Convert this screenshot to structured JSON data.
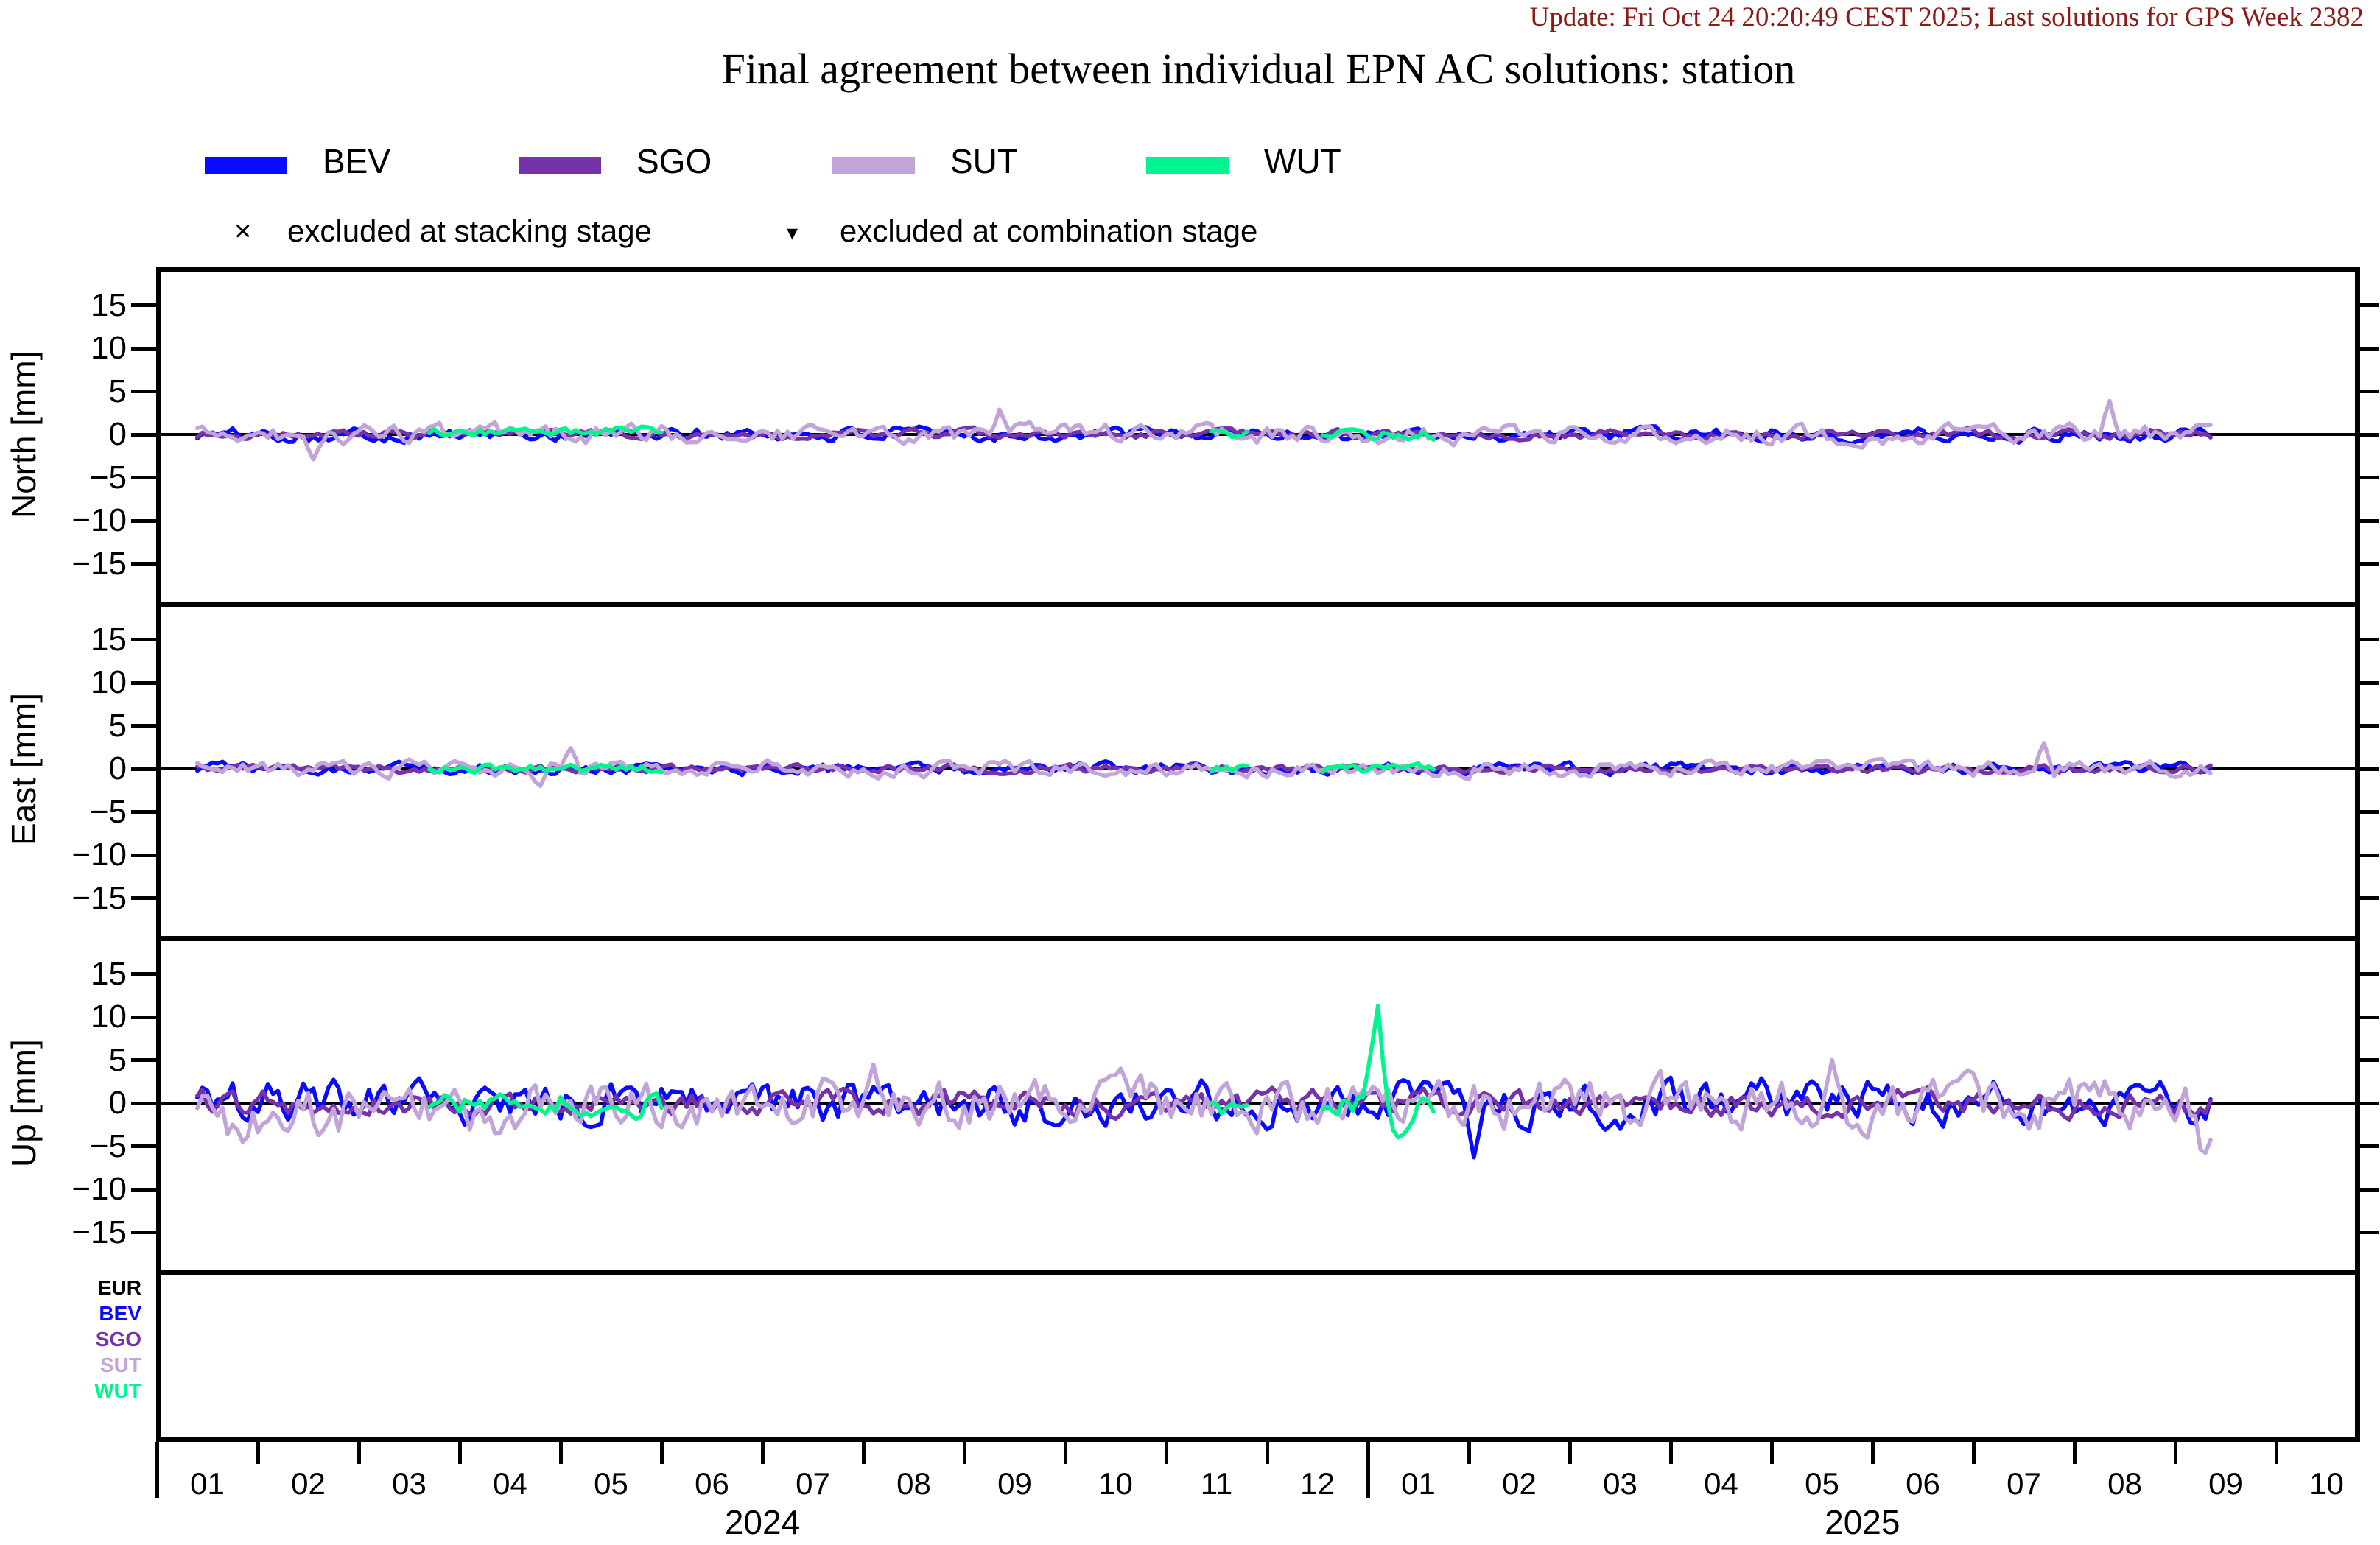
{
  "header": {
    "update_text": "Update: Fri Oct 24 20:20:49 CEST 2025; Last solutions for GPS Week 2382",
    "update_color": "#8b1a1a",
    "title": "Final agreement between individual EPN AC solutions: station"
  },
  "legend": {
    "entries": [
      {
        "label": "BEV",
        "color": "#0a0aff"
      },
      {
        "label": "SGO",
        "color": "#7632a8"
      },
      {
        "label": "SUT",
        "color": "#c2a5d8"
      },
      {
        "label": "WUT",
        "color": "#00f591"
      }
    ],
    "exclusions": [
      {
        "symbol": "×",
        "label": "excluded at stacking stage"
      },
      {
        "symbol": "▾",
        "label": "excluded at combination stage"
      }
    ]
  },
  "strip_labels": [
    {
      "label": "EUR",
      "color": "#000000"
    },
    {
      "label": "BEV",
      "color": "#0a0aff"
    },
    {
      "label": "SGO",
      "color": "#7632a8"
    },
    {
      "label": "SUT",
      "color": "#c2a5d8"
    },
    {
      "label": "WUT",
      "color": "#00f591"
    }
  ],
  "chart_data": {
    "type": "line",
    "title": "Final agreement between individual EPN AC solutions: station",
    "panels": [
      {
        "id": "North",
        "ylabel": "North [mm]"
      },
      {
        "id": "East",
        "ylabel": "East [mm]"
      },
      {
        "id": "Up",
        "ylabel": "Up [mm]"
      }
    ],
    "y_axis": {
      "ticks": [
        15,
        10,
        5,
        0,
        -5,
        -10,
        -15
      ],
      "lim": [
        -19.4,
        19.4
      ],
      "unit": "mm"
    },
    "x_axis": {
      "unit": "month",
      "axis_span_months": 21.83,
      "data_start_month": 0.4,
      "data_end_month": 20.35,
      "month_labels": [
        "01",
        "02",
        "03",
        "04",
        "05",
        "06",
        "07",
        "08",
        "09",
        "10",
        "11",
        "12",
        "01",
        "02",
        "03",
        "04",
        "05",
        "06",
        "07",
        "08",
        "09",
        "10"
      ],
      "year_tick_months": [
        0,
        12
      ],
      "year_labels": [
        {
          "label": "2024",
          "center_month": 6.0
        },
        {
          "label": "2025",
          "center_month": 16.9
        }
      ]
    },
    "noise": {
      "step_months": 0.05,
      "ar": 0.55
    },
    "series": [
      {
        "name": "BEV",
        "color": "#0a0aff",
        "seed": 101,
        "coverage": [
          [
            0.4,
            20.35
          ]
        ],
        "panel_sd": {
          "North": 0.62,
          "East": 0.52,
          "Up": 2.0
        },
        "bias": {}
      },
      {
        "name": "SGO",
        "color": "#7632a8",
        "seed": 202,
        "coverage": [
          [
            0.4,
            20.35
          ]
        ],
        "panel_sd": {
          "North": 0.42,
          "East": 0.36,
          "Up": 1.15
        },
        "bias": {}
      },
      {
        "name": "SUT",
        "color": "#c2a5d8",
        "seed": 303,
        "coverage": [
          [
            0.4,
            20.35
          ]
        ],
        "panel_sd": {
          "North": 0.85,
          "East": 0.72,
          "Up": 2.3
        },
        "bias": {
          "Up": [
            [
              0.7,
              3.6,
              -1.5
            ],
            [
              19.6,
              20.35,
              -1.0
            ]
          ]
        }
      },
      {
        "name": "WUT",
        "color": "#00f591",
        "seed": 404,
        "coverage": [
          [
            2.7,
            5.0
          ],
          [
            10.45,
            10.8
          ],
          [
            11.55,
            12.65
          ]
        ],
        "panel_sd": {
          "North": 0.5,
          "East": 0.42,
          "Up": 1.2
        },
        "bias": {
          "North": [
            [
              2.7,
              5.0,
              0.3
            ]
          ]
        }
      }
    ],
    "spikes": [
      {
        "panel": "North",
        "series": "SUT",
        "t": 1.55,
        "value": -2.9,
        "width": 0.12
      },
      {
        "panel": "North",
        "series": "SUT",
        "t": 8.35,
        "value": 2.9,
        "width": 0.1
      },
      {
        "panel": "North",
        "series": "SUT",
        "t": 19.35,
        "value": 3.9,
        "width": 0.1
      },
      {
        "panel": "East",
        "series": "SUT",
        "t": 3.8,
        "value": -2.0,
        "width": 0.1
      },
      {
        "panel": "East",
        "series": "SUT",
        "t": 4.1,
        "value": 2.4,
        "width": 0.1
      },
      {
        "panel": "East",
        "series": "SUT",
        "t": 18.7,
        "value": 3.0,
        "width": 0.1
      },
      {
        "panel": "Up",
        "series": "SUT",
        "t": 7.1,
        "value": 4.5,
        "width": 0.12
      },
      {
        "panel": "Up",
        "series": "SUT",
        "t": 16.6,
        "value": 5.0,
        "width": 0.12
      },
      {
        "panel": "Up",
        "series": "SUT",
        "t": 20.28,
        "value": -6.5,
        "width": 0.12
      },
      {
        "panel": "Up",
        "series": "BEV",
        "t": 13.05,
        "value": -6.3,
        "width": 0.12
      },
      {
        "panel": "Up",
        "series": "WUT",
        "t": 12.1,
        "value": 11.3,
        "width": 0.16
      },
      {
        "panel": "Up",
        "series": "WUT",
        "t": 12.32,
        "value": -4.3,
        "width": 0.22
      }
    ]
  }
}
